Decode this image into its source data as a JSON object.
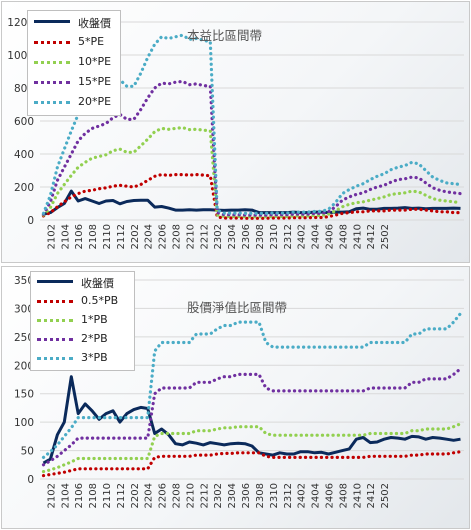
{
  "charts": [
    {
      "type": "line",
      "title": "本益比區間帶",
      "yticks": [
        0,
        200,
        400,
        600,
        800,
        1000,
        1200
      ],
      "ylim": [
        0,
        1200
      ],
      "x_tick_labels": [
        "2102",
        "2104",
        "2106",
        "2108",
        "2110",
        "2112",
        "2202",
        "2204",
        "2206",
        "2208",
        "2210",
        "2212",
        "2302",
        "2304",
        "2306",
        "2308",
        "2310",
        "2312",
        "2402",
        "2404",
        "2406",
        "2408",
        "2410",
        "2412",
        "2502"
      ],
      "series": [
        {
          "name": "收盤價",
          "color": "#0b2a5b",
          "style": "solid",
          "values": [
            35,
            45,
            75,
            100,
            175,
            115,
            130,
            115,
            100,
            115,
            118,
            98,
            112,
            118,
            120,
            120,
            78,
            82,
            72,
            60,
            60,
            62,
            60,
            62,
            62,
            60,
            58,
            60,
            60,
            62,
            60,
            45,
            45,
            45,
            45,
            45,
            48,
            45,
            45,
            48,
            48,
            45,
            48,
            48,
            50,
            68,
            72,
            65,
            65,
            70,
            70,
            72,
            75,
            70,
            72,
            68,
            70,
            70,
            70,
            72,
            70
          ]
        },
        {
          "name": "5*PE",
          "color": "#c00000",
          "style": "dotted",
          "values": [
            25,
            45,
            80,
            110,
            140,
            160,
            175,
            180,
            190,
            195,
            205,
            210,
            205,
            200,
            215,
            240,
            265,
            275,
            270,
            275,
            275,
            272,
            275,
            272,
            268,
            18,
            12,
            12,
            12,
            10,
            10,
            10,
            10,
            12,
            12,
            12,
            14,
            14,
            14,
            15,
            15,
            20,
            30,
            40,
            45,
            50,
            50,
            55,
            55,
            55,
            60,
            60,
            60,
            65,
            65,
            60,
            55,
            50,
            50,
            45,
            45
          ]
        },
        {
          "name": "10*PE",
          "color": "#92d050",
          "style": "dotted",
          "values": [
            30,
            75,
            160,
            215,
            270,
            320,
            350,
            375,
            385,
            395,
            420,
            430,
            410,
            410,
            450,
            490,
            535,
            555,
            550,
            555,
            560,
            548,
            550,
            545,
            540,
            30,
            22,
            22,
            22,
            20,
            20,
            20,
            20,
            22,
            22,
            22,
            25,
            25,
            25,
            28,
            28,
            35,
            55,
            80,
            95,
            105,
            110,
            120,
            130,
            140,
            155,
            160,
            165,
            175,
            170,
            150,
            130,
            120,
            115,
            110,
            105
          ]
        },
        {
          "name": "15*PE",
          "color": "#7030a0",
          "style": "dotted",
          "values": [
            35,
            110,
            240,
            320,
            400,
            480,
            525,
            555,
            570,
            585,
            620,
            640,
            610,
            610,
            670,
            740,
            800,
            830,
            825,
            835,
            840,
            820,
            825,
            815,
            810,
            45,
            32,
            32,
            32,
            30,
            30,
            30,
            30,
            32,
            32,
            32,
            36,
            36,
            36,
            40,
            40,
            50,
            80,
            120,
            140,
            155,
            165,
            185,
            200,
            210,
            230,
            245,
            250,
            260,
            255,
            225,
            195,
            180,
            170,
            165,
            160
          ]
        },
        {
          "name": "20*PE",
          "color": "#4bacc6",
          "style": "dotted",
          "values": [
            40,
            150,
            320,
            430,
            540,
            640,
            700,
            740,
            760,
            780,
            830,
            850,
            810,
            810,
            890,
            985,
            1065,
            1110,
            1100,
            1110,
            1120,
            1095,
            1100,
            1090,
            1080,
            60,
            42,
            42,
            42,
            40,
            40,
            40,
            40,
            42,
            42,
            42,
            48,
            48,
            48,
            52,
            52,
            65,
            105,
            160,
            185,
            205,
            220,
            245,
            265,
            280,
            305,
            320,
            330,
            350,
            340,
            300,
            260,
            240,
            225,
            220,
            215
          ]
        }
      ]
    },
    {
      "type": "line",
      "title": "股價淨值比區間帶",
      "yticks": [
        0,
        50,
        100,
        150,
        200,
        250,
        300,
        350
      ],
      "ylim": [
        0,
        350
      ],
      "x_tick_labels": [
        "2102",
        "2104",
        "2106",
        "2108",
        "2110",
        "2112",
        "2202",
        "2204",
        "2206",
        "2208",
        "2210",
        "2212",
        "2302",
        "2304",
        "2306",
        "2308",
        "2310",
        "2312",
        "2402",
        "2404",
        "2406",
        "2408",
        "2410",
        "2412",
        "2502"
      ],
      "series": [
        {
          "name": "收盤價",
          "color": "#0b2a5b",
          "style": "solid",
          "values": [
            28,
            35,
            78,
            100,
            180,
            115,
            132,
            120,
            105,
            115,
            120,
            100,
            115,
            122,
            126,
            124,
            80,
            88,
            78,
            62,
            60,
            65,
            63,
            60,
            64,
            62,
            60,
            62,
            63,
            62,
            58,
            46,
            44,
            42,
            46,
            44,
            44,
            48,
            48,
            46,
            47,
            44,
            47,
            50,
            53,
            70,
            73,
            64,
            65,
            70,
            73,
            72,
            70,
            75,
            74,
            70,
            73,
            72,
            70,
            68,
            70
          ]
        },
        {
          "name": "0.5*PB",
          "color": "#c00000",
          "style": "dotted",
          "values": [
            6,
            8,
            10,
            12,
            15,
            18,
            18,
            18,
            18,
            18,
            18,
            18,
            18,
            18,
            18,
            18,
            38,
            40,
            40,
            40,
            40,
            40,
            42,
            42,
            42,
            44,
            45,
            45,
            46,
            46,
            46,
            46,
            40,
            38,
            38,
            38,
            38,
            38,
            38,
            38,
            38,
            38,
            38,
            38,
            38,
            38,
            38,
            40,
            40,
            40,
            40,
            40,
            40,
            42,
            42,
            44,
            44,
            44,
            44,
            46,
            48
          ]
        },
        {
          "name": "1*PB",
          "color": "#92d050",
          "style": "dotted",
          "values": [
            13,
            16,
            20,
            25,
            30,
            36,
            36,
            36,
            36,
            36,
            36,
            36,
            36,
            36,
            36,
            36,
            75,
            80,
            80,
            80,
            80,
            80,
            85,
            85,
            85,
            88,
            90,
            90,
            92,
            92,
            92,
            92,
            80,
            77,
            77,
            77,
            77,
            77,
            77,
            77,
            77,
            77,
            77,
            77,
            77,
            77,
            77,
            80,
            80,
            80,
            80,
            80,
            80,
            85,
            85,
            88,
            88,
            88,
            88,
            92,
            97
          ]
        },
        {
          "name": "2*PB",
          "color": "#7030a0",
          "style": "dotted",
          "values": [
            25,
            32,
            40,
            50,
            60,
            72,
            72,
            72,
            72,
            72,
            72,
            72,
            72,
            72,
            72,
            72,
            150,
            160,
            160,
            160,
            160,
            160,
            170,
            170,
            170,
            176,
            180,
            180,
            184,
            184,
            184,
            184,
            160,
            155,
            155,
            155,
            155,
            155,
            155,
            155,
            155,
            155,
            155,
            155,
            155,
            155,
            155,
            160,
            160,
            160,
            160,
            160,
            160,
            170,
            170,
            176,
            176,
            176,
            176,
            184,
            194
          ]
        },
        {
          "name": "3*PB",
          "color": "#4bacc6",
          "style": "dotted",
          "values": [
            38,
            48,
            60,
            75,
            90,
            108,
            108,
            108,
            108,
            108,
            108,
            108,
            108,
            108,
            108,
            108,
            225,
            240,
            240,
            240,
            240,
            240,
            255,
            255,
            255,
            264,
            270,
            270,
            276,
            276,
            276,
            276,
            240,
            232,
            232,
            232,
            232,
            232,
            232,
            232,
            232,
            232,
            232,
            232,
            232,
            232,
            232,
            240,
            240,
            240,
            240,
            240,
            240,
            255,
            255,
            264,
            264,
            264,
            264,
            276,
            291
          ]
        }
      ]
    }
  ]
}
